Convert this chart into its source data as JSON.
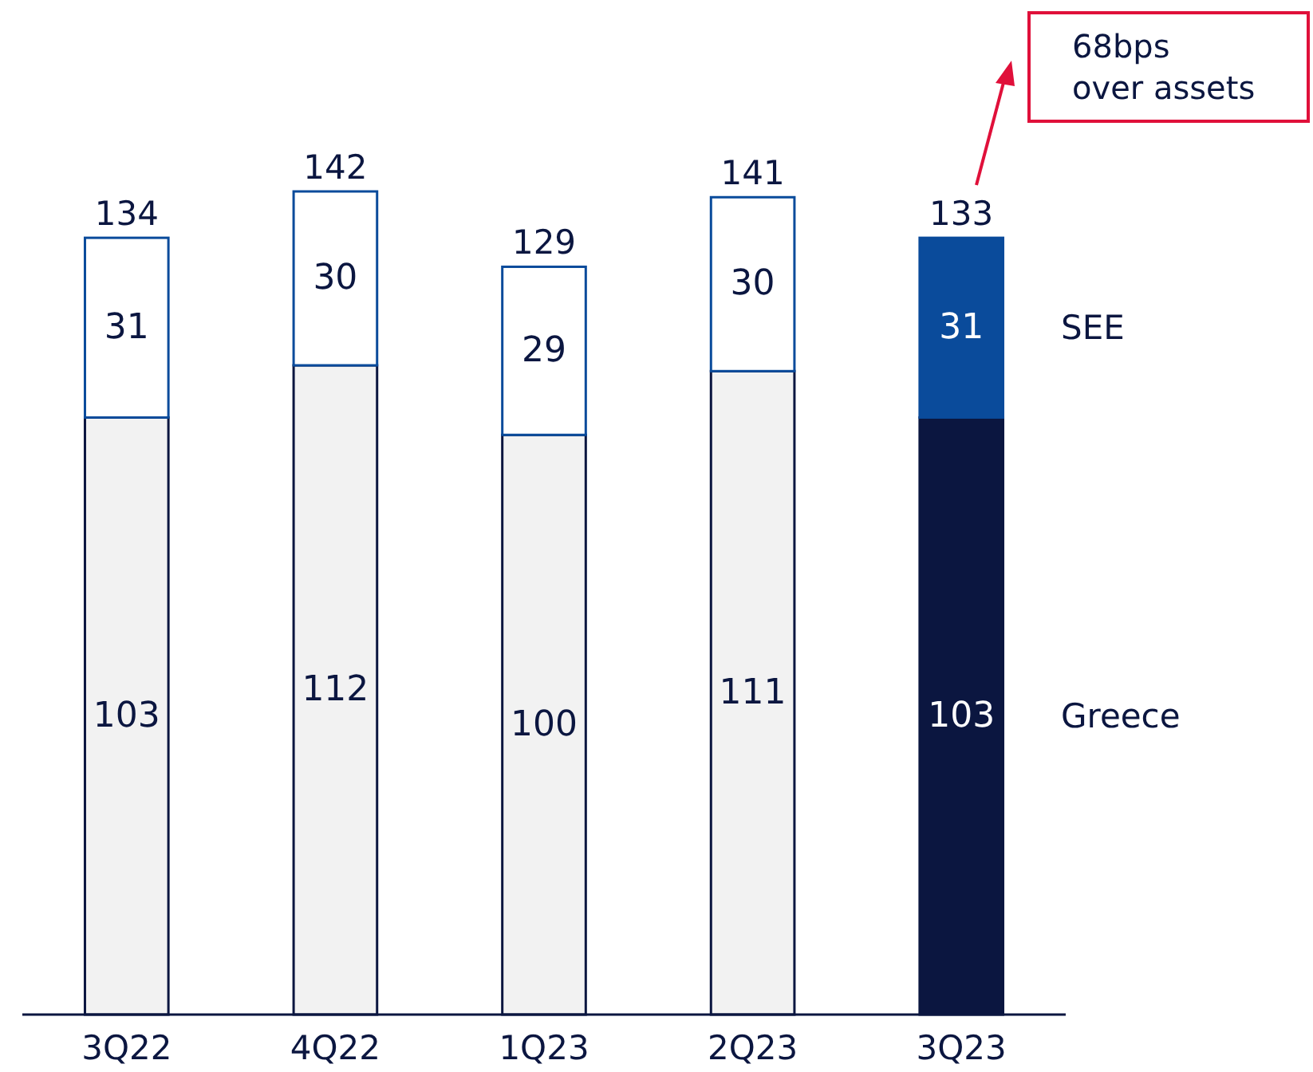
{
  "chart_data": {
    "type": "bar",
    "stacked": true,
    "data_labels": true,
    "categories": [
      "3Q22",
      "4Q22",
      "1Q23",
      "2Q23",
      "3Q23"
    ],
    "series": [
      {
        "name": "Greece",
        "colors": [
          "#f2f2f2",
          "#f2f2f2",
          "#f2f2f2",
          "#f2f2f2",
          "#0b1640"
        ],
        "values": [
          103,
          112,
          100,
          111,
          103
        ]
      },
      {
        "name": "SEE",
        "colors": [
          "#ffffff",
          "#ffffff",
          "#ffffff",
          "#ffffff",
          "#0a4b9b"
        ],
        "values": [
          31,
          30,
          29,
          30,
          31
        ]
      }
    ],
    "totals": [
      "134",
      "142",
      "129",
      "141",
      "133"
    ],
    "annotations": [
      "68bps\nover assets"
    ]
  }
}
